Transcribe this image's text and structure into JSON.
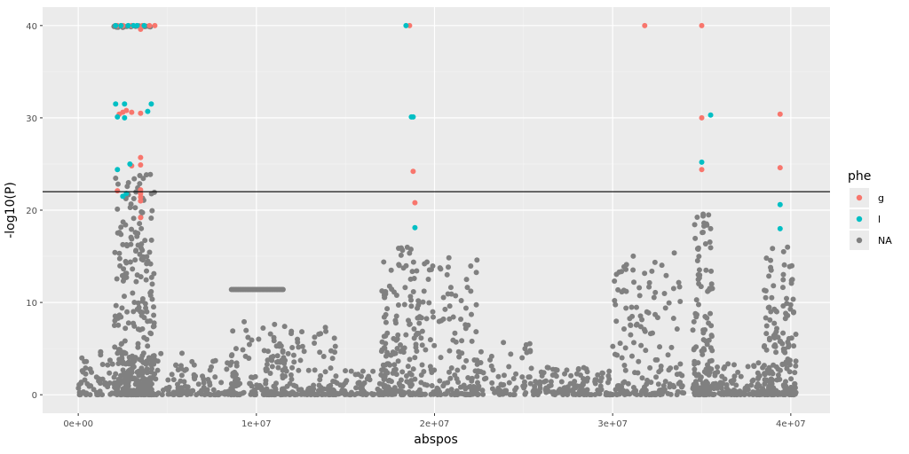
{
  "chart_data": {
    "type": "scatter",
    "title": "",
    "xlabel": "abspos",
    "ylabel": "-log10(P)",
    "xlim": [
      -2000000,
      42200000
    ],
    "ylim": [
      -2,
      42
    ],
    "x_ticks": [
      0,
      10000000,
      20000000,
      30000000,
      40000000
    ],
    "x_tick_labels": [
      "0e+00",
      "1e+07",
      "2e+07",
      "3e+07",
      "4e+07"
    ],
    "y_ticks": [
      0,
      10,
      20,
      30,
      40
    ],
    "y_tick_labels": [
      "0",
      "10",
      "20",
      "30",
      "40"
    ],
    "grid": true,
    "hline": 22,
    "legend": {
      "title": "phe",
      "placement": "right",
      "entries": [
        {
          "label": "g",
          "color": "#F8766D"
        },
        {
          "label": "l",
          "color": "#00BFC4"
        },
        {
          "label": "NA",
          "color": "#808080"
        }
      ]
    },
    "series": [
      {
        "name": "g",
        "color": "#F8766D",
        "points": [
          [
            2200000,
            40
          ],
          [
            2500000,
            40
          ],
          [
            3000000,
            40
          ],
          [
            3600000,
            40
          ],
          [
            4000000,
            40
          ],
          [
            4300000,
            40
          ],
          [
            3500000,
            39.6
          ],
          [
            2300000,
            30.4
          ],
          [
            2500000,
            30.6
          ],
          [
            2700000,
            30.8
          ],
          [
            3000000,
            30.6
          ],
          [
            3500000,
            30.5
          ],
          [
            3500000,
            25.7
          ],
          [
            3000000,
            24.8
          ],
          [
            3500000,
            24.9
          ],
          [
            2200000,
            22.1
          ],
          [
            3500000,
            22.2
          ],
          [
            3500000,
            21.8
          ],
          [
            3500000,
            21.4
          ],
          [
            3500000,
            21.0
          ],
          [
            3500000,
            19.2
          ],
          [
            18600000,
            40
          ],
          [
            18800000,
            24.2
          ],
          [
            18900000,
            20.8
          ],
          [
            31800000,
            40
          ],
          [
            35000000,
            40
          ],
          [
            35000000,
            30.0
          ],
          [
            35000000,
            24.4
          ],
          [
            39400000,
            30.4
          ],
          [
            39400000,
            24.6
          ]
        ]
      },
      {
        "name": "l",
        "color": "#00BFC4",
        "points": [
          [
            2100000,
            40
          ],
          [
            2400000,
            40
          ],
          [
            2800000,
            40
          ],
          [
            3100000,
            40
          ],
          [
            3300000,
            40
          ],
          [
            3700000,
            40
          ],
          [
            2100000,
            31.5
          ],
          [
            2600000,
            31.5
          ],
          [
            4100000,
            31.5
          ],
          [
            3900000,
            30.7
          ],
          [
            2200000,
            30.1
          ],
          [
            2600000,
            30.0
          ],
          [
            2200000,
            24.4
          ],
          [
            2900000,
            25.0
          ],
          [
            2500000,
            21.5
          ],
          [
            2700000,
            21.8
          ],
          [
            18400000,
            40
          ],
          [
            18700000,
            30.1
          ],
          [
            18800000,
            30.1
          ],
          [
            18900000,
            18.1
          ],
          [
            35000000,
            25.2
          ],
          [
            35500000,
            30.3
          ],
          [
            39400000,
            20.6
          ],
          [
            39400000,
            18.0
          ]
        ]
      }
    ],
    "na_series": {
      "name": "NA",
      "color": "#808080",
      "clusters": [
        {
          "x_range": [
            2000000,
            4300000
          ],
          "y_max": 24,
          "count": 340
        },
        {
          "x_range": [
            0,
            6000000
          ],
          "y_max": 5,
          "count": 160
        },
        {
          "x_range": [
            2000000,
            4200000
          ],
          "y_max": 40,
          "y_min": 39.8,
          "count": 28
        },
        {
          "x_range": [
            5500000,
            9000000
          ],
          "y_max": 4,
          "count": 90
        },
        {
          "x_range": [
            8500000,
            11500000
          ],
          "y_max": 8,
          "count": 110
        },
        {
          "x_range": [
            11000000,
            14500000
          ],
          "y_max": 7.5,
          "count": 120
        },
        {
          "x_range": [
            14000000,
            17500000
          ],
          "y_max": 3,
          "count": 80
        },
        {
          "x_range": [
            17000000,
            19200000
          ],
          "y_max": 16,
          "count": 170
        },
        {
          "x_range": [
            19000000,
            22500000
          ],
          "y_max": 15,
          "count": 160
        },
        {
          "x_range": [
            22500000,
            25500000
          ],
          "y_max": 6,
          "count": 60
        },
        {
          "x_range": [
            25500000,
            30000000
          ],
          "y_max": 3,
          "count": 140
        },
        {
          "x_range": [
            30000000,
            34000000
          ],
          "y_max": 15.5,
          "count": 170
        },
        {
          "x_range": [
            34500000,
            35600000
          ],
          "y_max": 19.7,
          "count": 130
        },
        {
          "x_range": [
            35000000,
            38500000
          ],
          "y_max": 3.5,
          "count": 120
        },
        {
          "x_range": [
            38500000,
            40300000
          ],
          "y_max": 16,
          "count": 190
        }
      ],
      "plateau": {
        "x_range": [
          8600000,
          11500000
        ],
        "y": 11.4,
        "count": 38
      }
    }
  }
}
